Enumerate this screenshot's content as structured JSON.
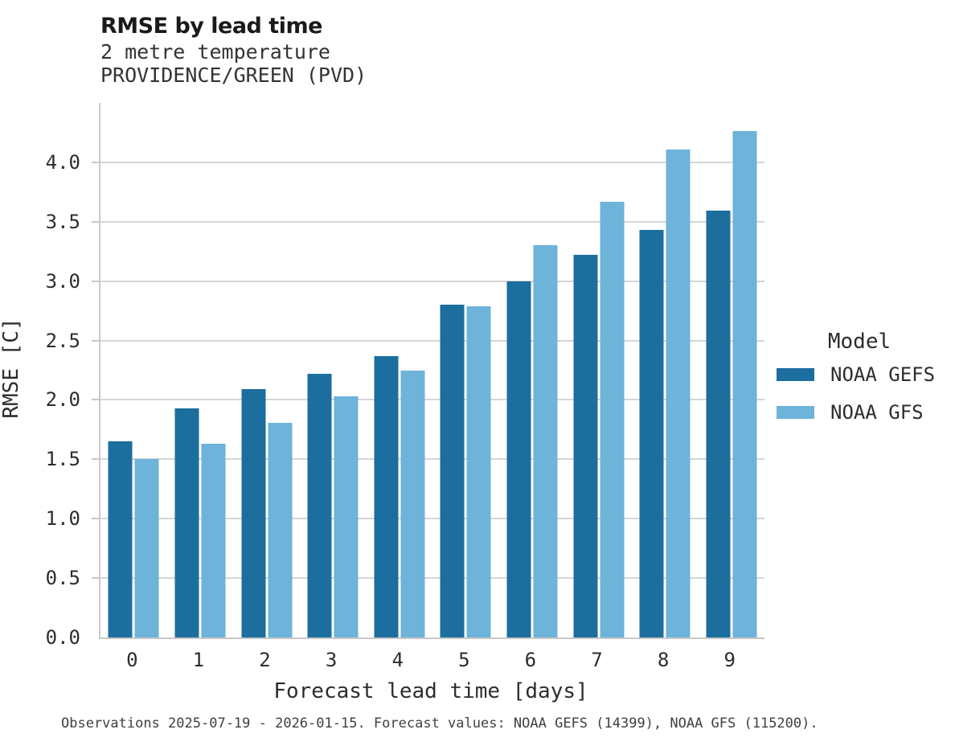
{
  "header": {
    "title": "RMSE by lead time",
    "subtitle_variable": "2 metre temperature",
    "subtitle_station": "PROVIDENCE/GREEN (PVD)"
  },
  "chart_data": {
    "type": "bar",
    "title": "RMSE by lead time",
    "subtitle": "2 metre temperature",
    "station": "PROVIDENCE/GREEN (PVD)",
    "categories": [
      0,
      1,
      2,
      3,
      4,
      5,
      6,
      7,
      8,
      9
    ],
    "series": [
      {
        "name": "NOAA GEFS",
        "color": "#1c6e9e",
        "values": [
          1.65,
          1.93,
          2.09,
          2.22,
          2.37,
          2.8,
          3.0,
          3.22,
          3.43,
          3.59
        ]
      },
      {
        "name": "NOAA GFS",
        "color": "#6db3da",
        "values": [
          1.5,
          1.63,
          1.81,
          2.03,
          2.25,
          2.79,
          3.3,
          3.67,
          4.11,
          4.26
        ]
      }
    ],
    "xlabel": "Forecast lead time [days]",
    "ylabel": "RMSE [C]",
    "ylim": [
      0,
      4.5
    ],
    "yticks": [
      0.0,
      0.5,
      1.0,
      1.5,
      2.0,
      2.5,
      3.0,
      3.5,
      4.0
    ],
    "grid": true,
    "legend_title": "Model",
    "legend_position": "right"
  },
  "footer": {
    "note": "Observations 2025-07-19 - 2026-01-15. Forecast values: NOAA GEFS (14399), NOAA GFS (115200)."
  }
}
